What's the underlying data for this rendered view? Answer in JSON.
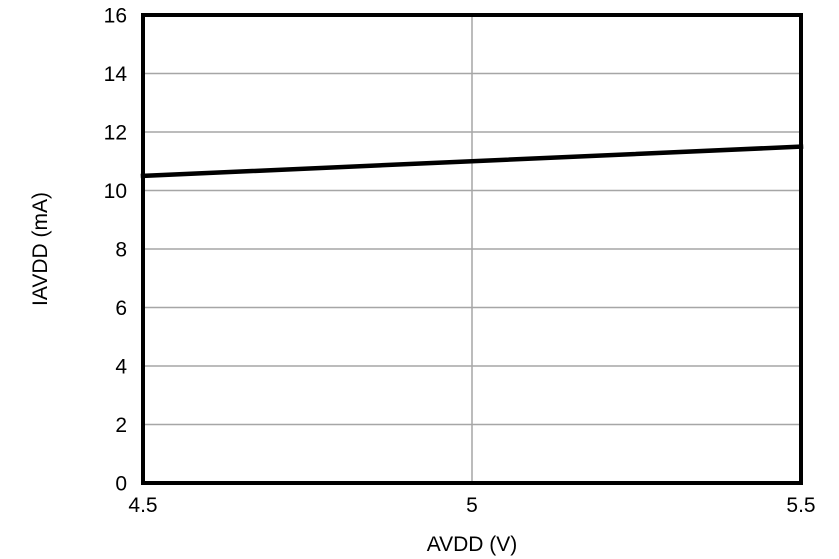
{
  "figure": {
    "background": "#ffffff"
  },
  "chart_data": {
    "type": "line",
    "title": "",
    "xlabel": "AVDD (V)",
    "ylabel": "IAVDD (mA)",
    "xlim": [
      4.5,
      5.5
    ],
    "ylim": [
      0,
      16
    ],
    "x_ticks": [
      4.5,
      5,
      5.5
    ],
    "x_tick_labels": [
      "4.5",
      "5",
      "5.5"
    ],
    "y_ticks": [
      0,
      2,
      4,
      6,
      8,
      10,
      12,
      14,
      16
    ],
    "y_tick_labels": [
      "0",
      "2",
      "4",
      "6",
      "8",
      "10",
      "12",
      "14",
      "16"
    ],
    "grid": true,
    "legend_position": "none",
    "series": [
      {
        "name": "IAVDD",
        "color": "#000000",
        "x": [
          4.5,
          5.0,
          5.5
        ],
        "y": [
          10.5,
          11.0,
          11.5
        ]
      }
    ],
    "colors": {
      "gridline": "#a6a6a6",
      "axis": "#000000",
      "text": "#000000",
      "plot_background": "#ffffff"
    }
  }
}
